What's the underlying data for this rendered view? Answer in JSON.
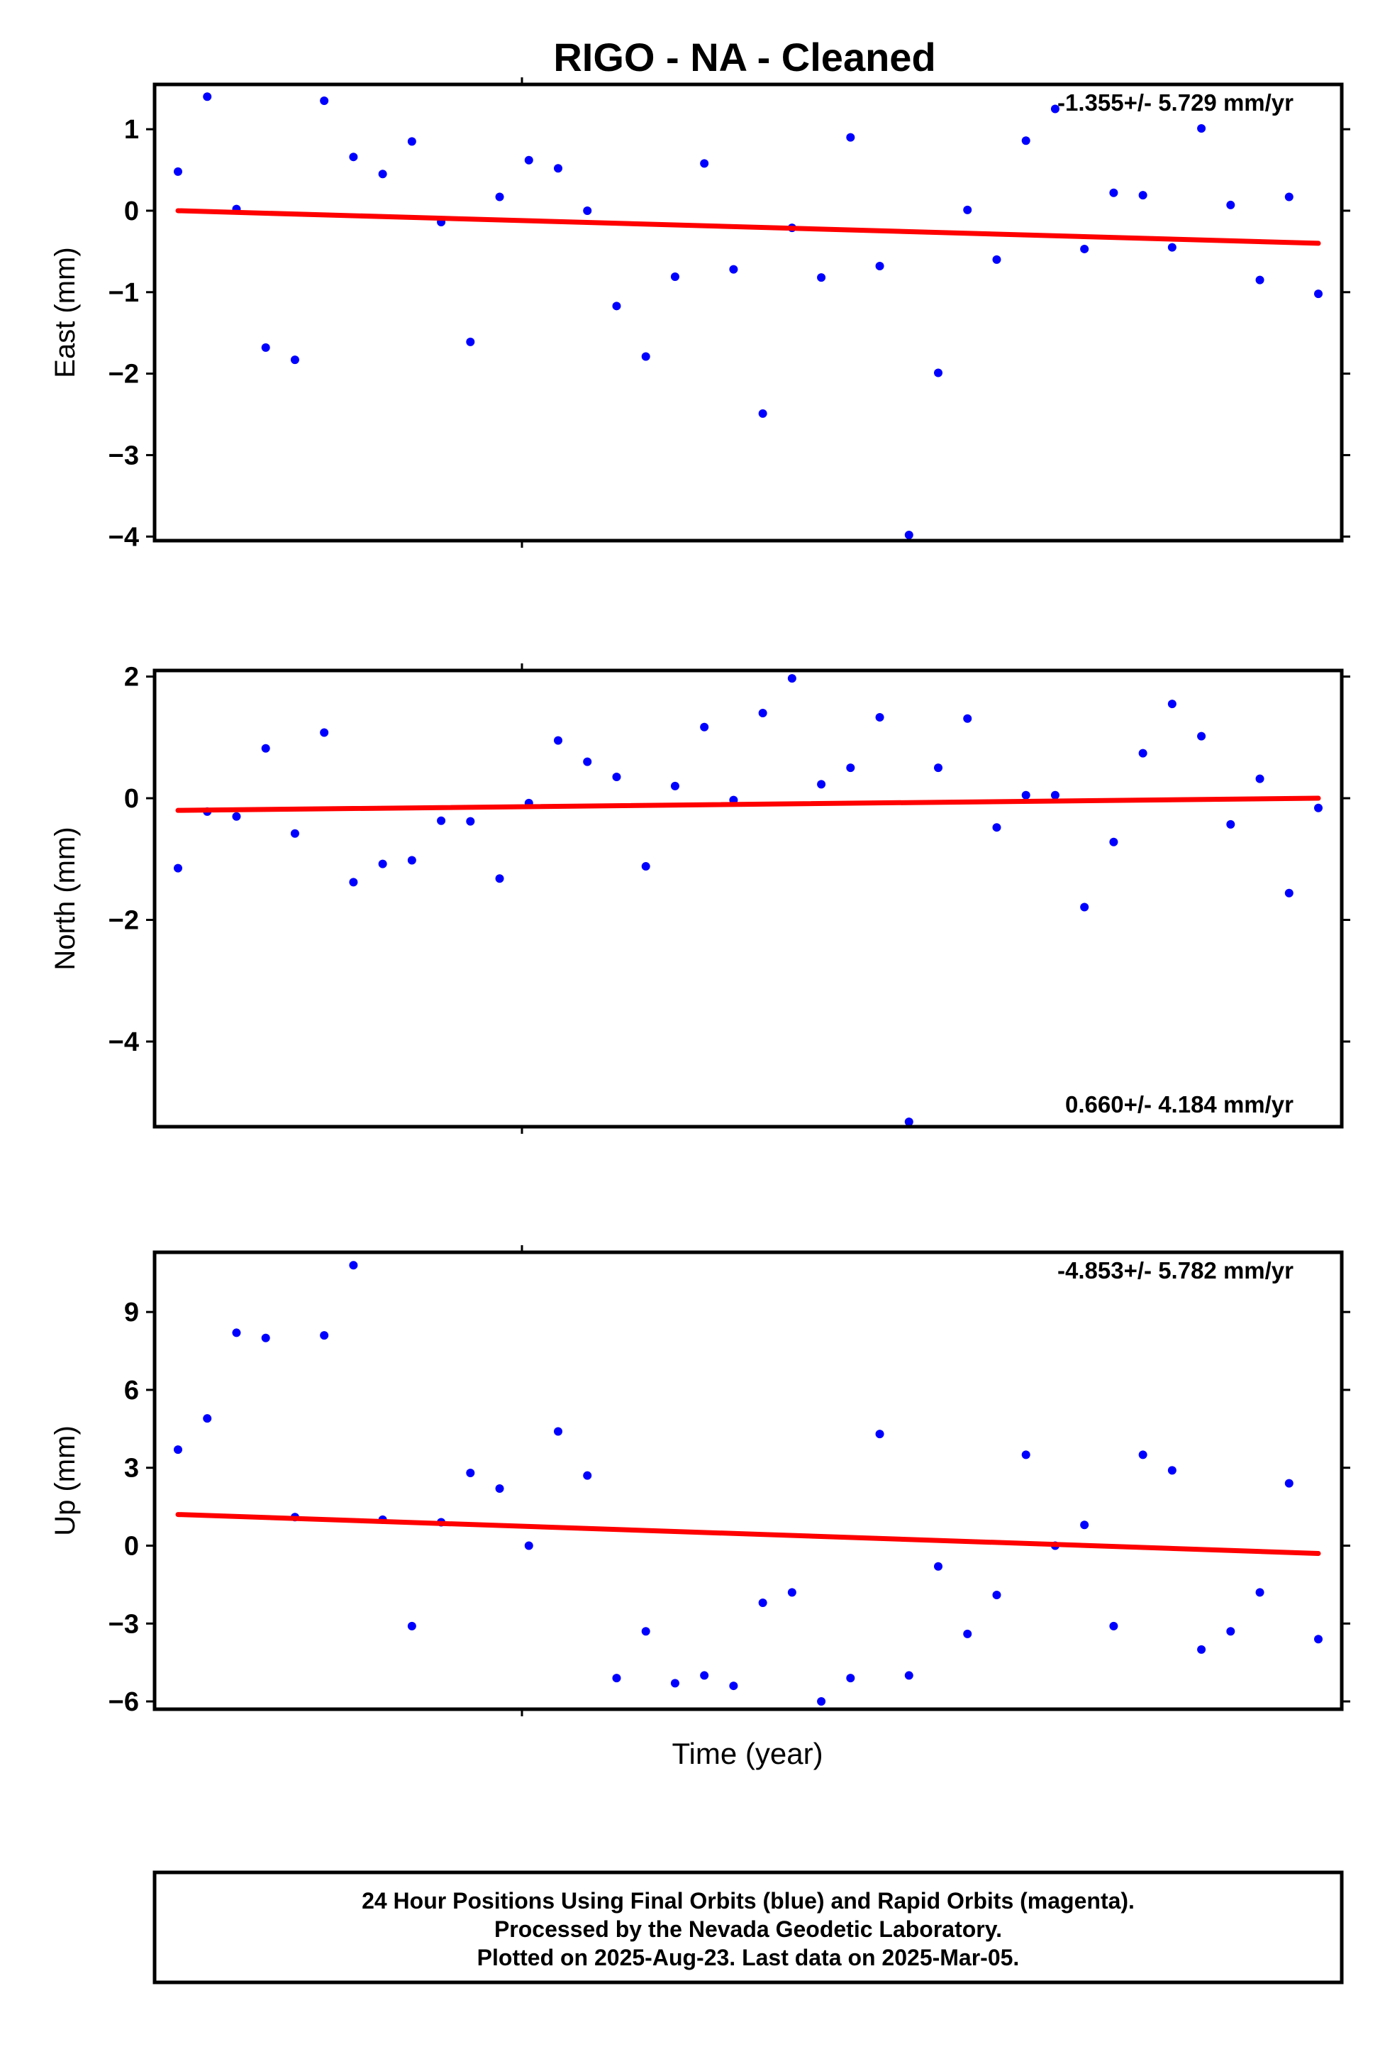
{
  "title": "RIGO  - NA - Cleaned",
  "xlabel": "Time (year)",
  "footer": {
    "line1": "24 Hour Positions Using Final Orbits (blue) and Rapid Orbits (magenta).",
    "line2": "Processed by the Nevada Geodetic Laboratory.",
    "line3": "Plotted on 2025-Aug-23. Last data on 2025-Mar-05."
  },
  "colors": {
    "points": "#0000ff",
    "trend": "#ff0000",
    "frame": "#000000"
  },
  "chart_data": [
    {
      "type": "scatter",
      "ylabel": "East (mm)",
      "rate_text": "-1.355+/- 5.729 mm/yr",
      "rate_position": "top-right",
      "ylim": [
        -4.05,
        1.55
      ],
      "yticks": [
        1,
        0,
        -1,
        -2,
        -3,
        -4
      ],
      "ytick_labels": [
        "1",
        "0",
        "−1",
        "−2",
        "−3",
        "−4"
      ],
      "x": [
        0,
        1,
        2,
        3,
        4,
        5,
        6,
        7,
        8,
        9,
        10,
        11,
        12,
        13,
        14,
        15,
        16,
        17,
        18,
        19,
        20,
        21,
        22,
        23,
        24,
        25,
        26,
        27,
        28,
        29,
        30,
        31,
        32,
        33,
        34,
        35,
        36,
        37,
        38,
        39
      ],
      "values": [
        0.48,
        1.4,
        0.02,
        -1.68,
        -1.83,
        1.35,
        0.66,
        0.45,
        0.85,
        -0.14,
        -1.61,
        0.17,
        0.62,
        0.52,
        0.0,
        -1.17,
        -1.79,
        -0.81,
        0.58,
        -0.72,
        -2.49,
        -0.21,
        -0.82,
        0.9,
        -0.68,
        -3.98,
        -1.99,
        0.01,
        -0.6,
        0.86,
        1.25,
        -0.47,
        0.22,
        0.19,
        -0.45,
        1.01,
        0.07,
        -0.85,
        0.17,
        -1.02
      ],
      "trend": [
        0.0,
        -0.4
      ]
    },
    {
      "type": "scatter",
      "ylabel": "North (mm)",
      "rate_text": "0.660+/- 4.184 mm/yr",
      "rate_position": "bottom-right",
      "ylim": [
        -5.4,
        2.1
      ],
      "yticks": [
        2,
        0,
        -2,
        -4
      ],
      "ytick_labels": [
        "2",
        "0",
        "−2",
        "−4"
      ],
      "x": [
        0,
        1,
        2,
        3,
        4,
        5,
        6,
        7,
        8,
        9,
        10,
        11,
        12,
        13,
        14,
        15,
        16,
        17,
        18,
        19,
        20,
        21,
        22,
        23,
        24,
        25,
        26,
        27,
        28,
        29,
        30,
        31,
        32,
        33,
        34,
        35,
        36,
        37,
        38,
        39
      ],
      "values": [
        -1.15,
        -0.22,
        -0.3,
        0.82,
        -0.58,
        1.08,
        -1.38,
        -1.08,
        -1.02,
        -0.37,
        -0.38,
        -1.32,
        -0.08,
        0.95,
        0.6,
        0.35,
        -1.12,
        0.2,
        1.17,
        -0.03,
        1.4,
        1.97,
        0.23,
        0.5,
        1.33,
        -5.32,
        0.5,
        1.31,
        -0.48,
        0.05,
        0.05,
        -1.79,
        -0.72,
        0.74,
        1.55,
        1.02,
        -0.43,
        0.32,
        -1.56,
        -0.16
      ],
      "trend": [
        -0.2,
        0.0
      ]
    },
    {
      "type": "scatter",
      "ylabel": "Up (mm)",
      "rate_text": "-4.853+/- 5.782 mm/yr",
      "rate_position": "top-right",
      "ylim": [
        -6.3,
        11.3
      ],
      "yticks": [
        9,
        6,
        3,
        0,
        -3,
        -6
      ],
      "ytick_labels": [
        "9",
        "6",
        "3",
        "0",
        "−3",
        "−6"
      ],
      "x": [
        0,
        1,
        2,
        3,
        4,
        5,
        6,
        7,
        8,
        9,
        10,
        11,
        12,
        13,
        14,
        15,
        16,
        17,
        18,
        19,
        20,
        21,
        22,
        23,
        24,
        25,
        26,
        27,
        28,
        29,
        30,
        31,
        32,
        33,
        34,
        35,
        36,
        37,
        38,
        39
      ],
      "values": [
        3.7,
        4.9,
        8.2,
        8.0,
        1.1,
        8.1,
        10.8,
        1.0,
        -3.1,
        0.9,
        2.8,
        2.2,
        0.0,
        4.4,
        2.7,
        -5.1,
        -3.3,
        -5.3,
        -5.0,
        -5.4,
        -2.2,
        -1.8,
        -6.0,
        -5.1,
        4.3,
        -5.0,
        -0.8,
        -3.4,
        -1.9,
        3.5,
        0.0,
        0.8,
        -3.1,
        3.5,
        2.9,
        -4.0,
        -3.3,
        -1.8,
        2.4,
        -3.6
      ],
      "trend": [
        1.2,
        -0.3
      ]
    }
  ]
}
